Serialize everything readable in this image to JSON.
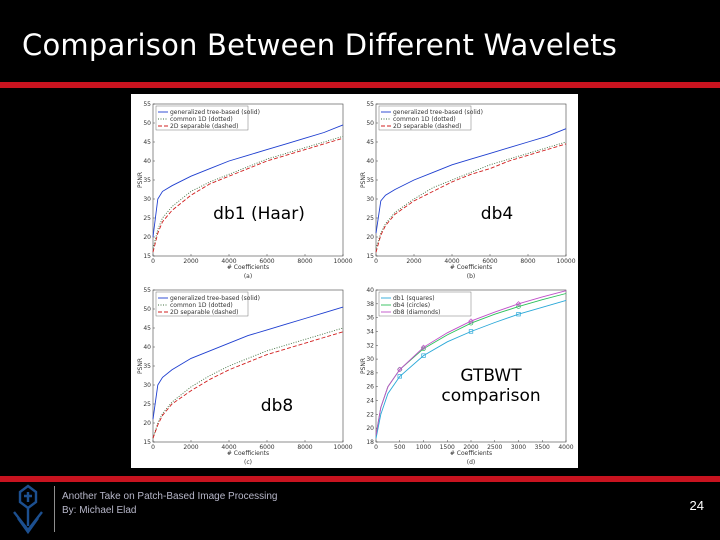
{
  "slide": {
    "title": "Comparison Between Different Wavelets",
    "footer_line1": "Another Take on Patch-Based Image Processing",
    "footer_line2": "By: Michael Elad",
    "page_number": "24",
    "accent_color": "#c8131f",
    "logo_icon": "technion-logo-icon"
  },
  "figure": {
    "panels": [
      {
        "overlay_label": "db1 (Haar)",
        "sub_label": "(a)",
        "xlabel": "# Coefficients",
        "ylabel": "PSNR",
        "legend": [
          "generalized tree-based (solid)",
          "common 1D (dotted)",
          "2D separable (dashed)"
        ],
        "x_ticks": [
          "0",
          "2000",
          "4000",
          "6000",
          "8000",
          "10000"
        ],
        "y_ticks": [
          "15",
          "20",
          "25",
          "30",
          "35",
          "40",
          "45",
          "50",
          "55"
        ]
      },
      {
        "overlay_label": "db4",
        "sub_label": "(b)",
        "xlabel": "# Coefficients",
        "ylabel": "PSNR",
        "legend": [
          "generalized tree-based (solid)",
          "common 1D (dotted)",
          "2D separable (dashed)"
        ],
        "x_ticks": [
          "0",
          "2000",
          "4000",
          "6000",
          "8000",
          "10000"
        ],
        "y_ticks": [
          "15",
          "20",
          "25",
          "30",
          "35",
          "40",
          "45",
          "50",
          "55"
        ]
      },
      {
        "overlay_label": "db8",
        "sub_label": "(c)",
        "xlabel": "# Coefficients",
        "ylabel": "PSNR",
        "legend": [
          "generalized tree-based (solid)",
          "common 1D (dotted)",
          "2D separable (dashed)"
        ],
        "x_ticks": [
          "0",
          "2000",
          "4000",
          "6000",
          "8000",
          "10000"
        ],
        "y_ticks": [
          "15",
          "20",
          "25",
          "30",
          "35",
          "40",
          "45",
          "50",
          "55"
        ]
      },
      {
        "overlay_label": "GTBWT comparison",
        "sub_label": "(d)",
        "xlabel": "# Coefficients",
        "ylabel": "PSNR",
        "legend": [
          "db1 (squares)",
          "db4 (circles)",
          "db8 (diamonds)"
        ],
        "x_ticks": [
          "0",
          "500",
          "1000",
          "1500",
          "2000",
          "2500",
          "3000",
          "3500",
          "4000"
        ],
        "y_ticks": [
          "18",
          "20",
          "22",
          "24",
          "26",
          "28",
          "30",
          "32",
          "34",
          "36",
          "38",
          "40"
        ]
      }
    ]
  },
  "chart_data": [
    {
      "type": "line",
      "xlabel": "# Coefficients",
      "ylabel": "PSNR",
      "xlim": [
        0,
        10000
      ],
      "ylim": [
        15,
        55
      ],
      "x": [
        0,
        250,
        500,
        1000,
        2000,
        3000,
        4000,
        5000,
        6000,
        7000,
        8000,
        9000,
        10000
      ],
      "series": [
        {
          "name": "generalized tree-based (solid)",
          "color": "#1f3fd0",
          "dash": "solid",
          "values": [
            20,
            30,
            32,
            33.5,
            36,
            38,
            40,
            41.5,
            43,
            44.5,
            46,
            47.5,
            49.5
          ]
        },
        {
          "name": "common 1D (dotted)",
          "color": "#3f6f3f",
          "dash": "dotted",
          "values": [
            17,
            22,
            25,
            28,
            32,
            34.5,
            36.5,
            38.5,
            40.5,
            42,
            43.5,
            45,
            46.5
          ]
        },
        {
          "name": "2D separable (dashed)",
          "color": "#d11f1f",
          "dash": "dashed",
          "values": [
            16,
            21,
            24,
            27,
            31,
            34,
            36,
            38,
            40,
            41.5,
            43,
            44.5,
            46
          ]
        }
      ]
    },
    {
      "type": "line",
      "xlabel": "# Coefficients",
      "ylabel": "PSNR",
      "xlim": [
        0,
        10000
      ],
      "ylim": [
        15,
        55
      ],
      "x": [
        0,
        250,
        500,
        1000,
        2000,
        3000,
        4000,
        5000,
        6000,
        7000,
        8000,
        9000,
        10000
      ],
      "series": [
        {
          "name": "generalized tree-based (solid)",
          "color": "#1f3fd0",
          "dash": "solid",
          "values": [
            21,
            29.5,
            31,
            32.5,
            35,
            37,
            39,
            40.5,
            42,
            43.5,
            45,
            46.5,
            48.5
          ]
        },
        {
          "name": "common 1D (dotted)",
          "color": "#3f6f3f",
          "dash": "dotted",
          "values": [
            17,
            21,
            23.5,
            26.5,
            30,
            33,
            35,
            37,
            39,
            40.5,
            42,
            43.5,
            45
          ]
        },
        {
          "name": "2D separable (dashed)",
          "color": "#d11f1f",
          "dash": "dashed",
          "values": [
            16,
            20.5,
            23,
            26,
            29.5,
            32,
            34.5,
            36.5,
            38,
            40,
            41.5,
            43,
            44.5
          ]
        }
      ]
    },
    {
      "type": "line",
      "xlabel": "# Coefficients",
      "ylabel": "PSNR",
      "xlim": [
        0,
        10000
      ],
      "ylim": [
        15,
        55
      ],
      "x": [
        0,
        250,
        500,
        1000,
        2000,
        3000,
        4000,
        5000,
        6000,
        7000,
        8000,
        9000,
        10000
      ],
      "series": [
        {
          "name": "generalized tree-based (solid)",
          "color": "#1f3fd0",
          "dash": "solid",
          "values": [
            21,
            30,
            32,
            34,
            37,
            39,
            41,
            43,
            44.5,
            46,
            47.5,
            49,
            50.5
          ]
        },
        {
          "name": "common 1D (dotted)",
          "color": "#3f6f3f",
          "dash": "dotted",
          "values": [
            16,
            20,
            22.5,
            25.5,
            29.5,
            32.5,
            35,
            37,
            39,
            40.5,
            42,
            43.5,
            45
          ]
        },
        {
          "name": "2D separable (dashed)",
          "color": "#d11f1f",
          "dash": "dashed",
          "values": [
            16,
            19.5,
            22,
            25,
            28.5,
            31.5,
            34,
            36,
            38,
            39.5,
            41,
            42.5,
            44
          ]
        }
      ]
    },
    {
      "type": "line",
      "xlabel": "# Coefficients",
      "ylabel": "PSNR",
      "xlim": [
        0,
        4000
      ],
      "ylim": [
        18,
        40
      ],
      "x": [
        0,
        100,
        250,
        500,
        1000,
        1500,
        2000,
        2500,
        3000,
        3500,
        4000
      ],
      "series": [
        {
          "name": "db1 (squares)",
          "color": "#2aa8d8",
          "dash": "solid",
          "marker": "square",
          "values": [
            18.5,
            22,
            25,
            27.5,
            30.5,
            32.5,
            34,
            35.3,
            36.5,
            37.5,
            38.5
          ]
        },
        {
          "name": "db4 (circles)",
          "color": "#2cc05a",
          "dash": "solid",
          "marker": "circle",
          "values": [
            19,
            23,
            26,
            28.5,
            31.5,
            33.5,
            35.2,
            36.5,
            37.6,
            38.6,
            39.5
          ]
        },
        {
          "name": "db8 (diamonds)",
          "color": "#c04fc9",
          "dash": "solid",
          "marker": "diamond",
          "values": [
            19,
            23,
            26,
            28.5,
            31.7,
            33.8,
            35.5,
            36.8,
            38,
            39,
            39.9
          ]
        }
      ]
    }
  ]
}
